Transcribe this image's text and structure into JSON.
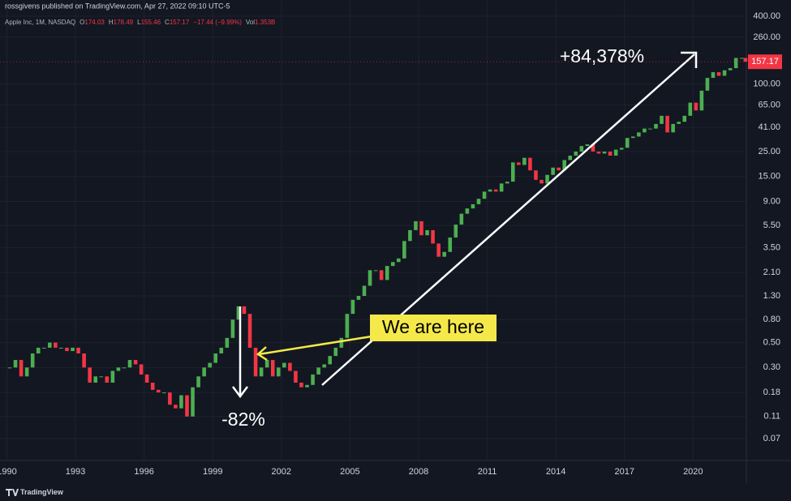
{
  "header": {
    "publisher": "rossgivens published on TradingView.com, Apr 27, 2022 09:10 UTC-5",
    "symbol": "Apple Inc, 1M, NASDAQ",
    "ohlc": [
      {
        "key": "O",
        "value": "174.03"
      },
      {
        "key": "H",
        "value": "178.49"
      },
      {
        "key": "L",
        "value": "155.46"
      },
      {
        "key": "C",
        "value": "157.17"
      }
    ],
    "change": "−17.44 (−9.99%)",
    "vol_key": "Vol",
    "vol_value": "1.353B"
  },
  "chart_data": {
    "type": "candlestick",
    "log_scale": true,
    "grid": true,
    "up_color": "#4caf50",
    "down_color": "#f23645",
    "x": [
      1990.125,
      1990.375,
      1990.625,
      1990.875,
      1991.125,
      1991.375,
      1991.625,
      1991.875,
      1992.125,
      1992.375,
      1992.625,
      1992.875,
      1993.125,
      1993.375,
      1993.625,
      1993.875,
      1994.125,
      1994.375,
      1994.625,
      1994.875,
      1995.125,
      1995.375,
      1995.625,
      1995.875,
      1996.125,
      1996.375,
      1996.625,
      1996.875,
      1997.125,
      1997.375,
      1997.625,
      1997.875,
      1998.125,
      1998.375,
      1998.625,
      1998.875,
      1999.125,
      1999.375,
      1999.625,
      1999.875,
      2000.125,
      2000.375,
      2000.625,
      2000.875,
      2001.125,
      2001.375,
      2001.625,
      2001.875,
      2002.125,
      2002.375,
      2002.625,
      2002.875,
      2003.125,
      2003.375,
      2003.625,
      2003.875,
      2004.125,
      2004.375,
      2004.625,
      2004.875,
      2005.125,
      2005.375,
      2005.625,
      2005.875,
      2006.125,
      2006.375,
      2006.625,
      2006.875,
      2007.125,
      2007.375,
      2007.625,
      2007.875,
      2008.125,
      2008.375,
      2008.625,
      2008.875,
      2009.125,
      2009.375,
      2009.625,
      2009.875,
      2010.125,
      2010.375,
      2010.625,
      2010.875,
      2011.125,
      2011.375,
      2011.625,
      2011.875,
      2012.125,
      2012.375,
      2012.625,
      2012.875,
      2013.125,
      2013.375,
      2013.625,
      2013.875,
      2014.125,
      2014.375,
      2014.625,
      2014.875,
      2015.125,
      2015.375,
      2015.625,
      2015.875,
      2016.125,
      2016.375,
      2016.625,
      2016.875,
      2017.125,
      2017.375,
      2017.625,
      2017.875,
      2018.125,
      2018.375,
      2018.625,
      2018.875,
      2019.125,
      2019.375,
      2019.625,
      2019.875,
      2020.125,
      2020.375,
      2020.625,
      2020.875,
      2021.125,
      2021.375,
      2021.625,
      2021.875,
      2022.125,
      2022.29
    ],
    "close": [
      0.3,
      0.35,
      0.25,
      0.3,
      0.4,
      0.45,
      0.45,
      0.5,
      0.45,
      0.45,
      0.42,
      0.45,
      0.4,
      0.3,
      0.22,
      0.25,
      0.25,
      0.22,
      0.28,
      0.3,
      0.3,
      0.35,
      0.32,
      0.26,
      0.22,
      0.19,
      0.18,
      0.18,
      0.14,
      0.13,
      0.17,
      0.11,
      0.2,
      0.25,
      0.3,
      0.33,
      0.4,
      0.45,
      0.55,
      0.8,
      1.05,
      0.9,
      0.45,
      0.25,
      0.3,
      0.35,
      0.25,
      0.3,
      0.33,
      0.28,
      0.22,
      0.2,
      0.21,
      0.26,
      0.3,
      0.32,
      0.38,
      0.45,
      0.55,
      0.9,
      1.2,
      1.3,
      1.6,
      2.2,
      2.2,
      1.8,
      2.4,
      2.6,
      2.8,
      4.0,
      5.0,
      6.0,
      4.5,
      5.0,
      3.8,
      2.9,
      3.2,
      4.3,
      5.6,
      7.0,
      7.8,
      8.5,
      9.5,
      11.0,
      11.5,
      11.0,
      13.0,
      13.5,
      20.0,
      19.0,
      22.0,
      17.0,
      14.0,
      13.0,
      15.5,
      18.0,
      17.0,
      21.0,
      23.0,
      25.0,
      28.0,
      29.0,
      25.0,
      24.0,
      25.0,
      23.0,
      26.0,
      27.0,
      33.0,
      34.0,
      37.0,
      40.0,
      40.0,
      44.0,
      52.0,
      37.0,
      44.0,
      46.0,
      52.0,
      68.0,
      58.0,
      87.0,
      113.0,
      127.0,
      118.0,
      132.0,
      138.0,
      170.0,
      170.0,
      157.17
    ],
    "xlim": [
      1989.7,
      2022.33
    ],
    "xticks": [
      1990,
      1993,
      1996,
      1999,
      2002,
      2005,
      2008,
      2011,
      2014,
      2017,
      2020
    ],
    "ylim": [
      0.0447,
      557
    ],
    "yticks": [
      {
        "value": 400,
        "label": "400.00"
      },
      {
        "value": 260,
        "label": "260.00"
      },
      {
        "value": 100,
        "label": "100.00"
      },
      {
        "value": 65,
        "label": "65.00"
      },
      {
        "value": 41,
        "label": "41.00"
      },
      {
        "value": 25,
        "label": "25.00"
      },
      {
        "value": 15,
        "label": "15.00"
      },
      {
        "value": 9,
        "label": "9.00"
      },
      {
        "value": 5.5,
        "label": "5.50"
      },
      {
        "value": 3.5,
        "label": "3.50"
      },
      {
        "value": 2.1,
        "label": "2.10"
      },
      {
        "value": 1.3,
        "label": "1.30"
      },
      {
        "value": 0.8,
        "label": "0.80"
      },
      {
        "value": 0.5,
        "label": "0.50"
      },
      {
        "value": 0.3,
        "label": "0.30"
      },
      {
        "value": 0.18,
        "label": "0.18"
      },
      {
        "value": 0.11,
        "label": "0.11"
      },
      {
        "value": 0.07,
        "label": "0.07"
      }
    ],
    "annotations": {
      "gain": "+84,378%",
      "drop": "-82%",
      "here": "We are here"
    }
  },
  "footer": {
    "brand": "TradingView"
  }
}
